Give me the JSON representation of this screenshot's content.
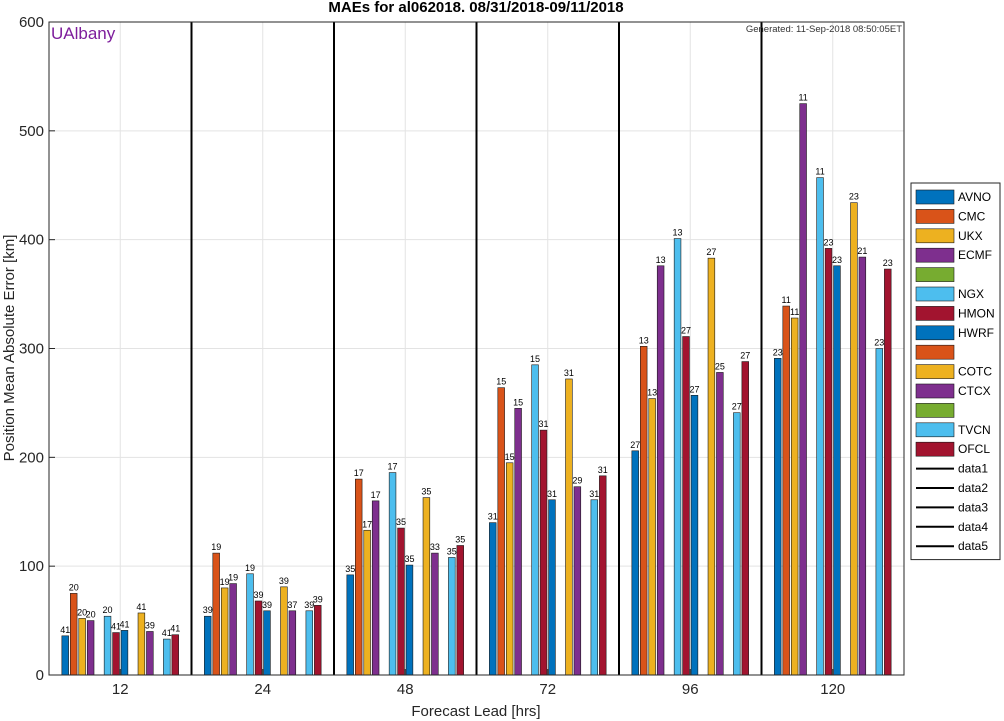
{
  "brand_label": "UAlbany",
  "generated_text": "Generated: 11-Sep-2018 08:50:05ET",
  "chart_data": {
    "type": "bar",
    "title": "MAEs for al062018. 08/31/2018-09/11/2018",
    "xlabel": "Forecast Lead [hrs]",
    "ylabel": "Position Mean Absolute Error [km]",
    "ylim": [
      0,
      600
    ],
    "yticks": [
      0,
      100,
      200,
      300,
      400,
      500,
      600
    ],
    "grid": true,
    "legend_position": "right",
    "categories": [
      "12",
      "24",
      "48",
      "72",
      "96",
      "120"
    ],
    "series": [
      {
        "name": "AVNO",
        "color": "#0072bd",
        "values": [
          36,
          54,
          92,
          140,
          206,
          291
        ],
        "counts": [
          "41",
          "39",
          "35",
          "31",
          "27",
          "23"
        ]
      },
      {
        "name": "CMC",
        "color": "#d95319",
        "values": [
          75,
          112,
          180,
          264,
          302,
          339
        ],
        "counts": [
          "20",
          "19",
          "17",
          "15",
          "13",
          "11"
        ]
      },
      {
        "name": "UKX",
        "color": "#edb120",
        "values": [
          52,
          80,
          133,
          195,
          254,
          328
        ],
        "counts": [
          "20",
          "19",
          "17",
          "15",
          "13",
          "11"
        ]
      },
      {
        "name": "ECMF",
        "color": "#7e2f8e",
        "values": [
          50,
          84,
          160,
          245,
          376,
          525
        ],
        "counts": [
          "20",
          "19",
          "17",
          "15",
          "13",
          "11"
        ]
      },
      {
        "name": "",
        "color": "#77ac30",
        "values": [
          null,
          null,
          null,
          null,
          null,
          null
        ],
        "counts": []
      },
      {
        "name": "NGX",
        "color": "#4dbeee",
        "values": [
          54,
          93,
          186,
          285,
          401,
          457
        ],
        "counts": [
          "20",
          "19",
          "17",
          "15",
          "13",
          "11"
        ]
      },
      {
        "name": "HMON",
        "color": "#a2142f",
        "values": [
          39,
          68,
          135,
          225,
          311,
          392
        ],
        "counts": [
          "41",
          "39",
          "35",
          "31",
          "27",
          "23"
        ]
      },
      {
        "name": "HWRF",
        "color": "#0072bd",
        "values": [
          41,
          59,
          101,
          161,
          257,
          376
        ],
        "counts": [
          "41",
          "39",
          "35",
          "31",
          "27",
          "23"
        ]
      },
      {
        "name": "",
        "color": "#d95319",
        "values": [
          null,
          null,
          null,
          null,
          null,
          null
        ],
        "counts": []
      },
      {
        "name": "COTC",
        "color": "#edb120",
        "values": [
          57,
          81,
          163,
          272,
          383,
          434
        ],
        "counts": [
          "41",
          "39",
          "35",
          "31",
          "27",
          "23"
        ]
      },
      {
        "name": "CTCX",
        "color": "#7e2f8e",
        "values": [
          40,
          59,
          112,
          173,
          278,
          384
        ],
        "counts": [
          "39",
          "37",
          "33",
          "29",
          "25",
          "21"
        ]
      },
      {
        "name": "",
        "color": "#77ac30",
        "values": [
          null,
          null,
          null,
          null,
          null,
          null
        ],
        "counts": []
      },
      {
        "name": "TVCN",
        "color": "#4dbeee",
        "values": [
          33,
          59,
          108,
          161,
          241,
          300
        ],
        "counts": [
          "41",
          "39",
          "35",
          "31",
          "27",
          "23"
        ]
      },
      {
        "name": "OFCL",
        "color": "#a2142f",
        "values": [
          37,
          64,
          119,
          183,
          288,
          373
        ],
        "counts": [
          "41",
          "39",
          "35",
          "31",
          "27",
          "23"
        ]
      }
    ],
    "line_legend": [
      "data1",
      "data2",
      "data3",
      "data4",
      "data5"
    ]
  }
}
